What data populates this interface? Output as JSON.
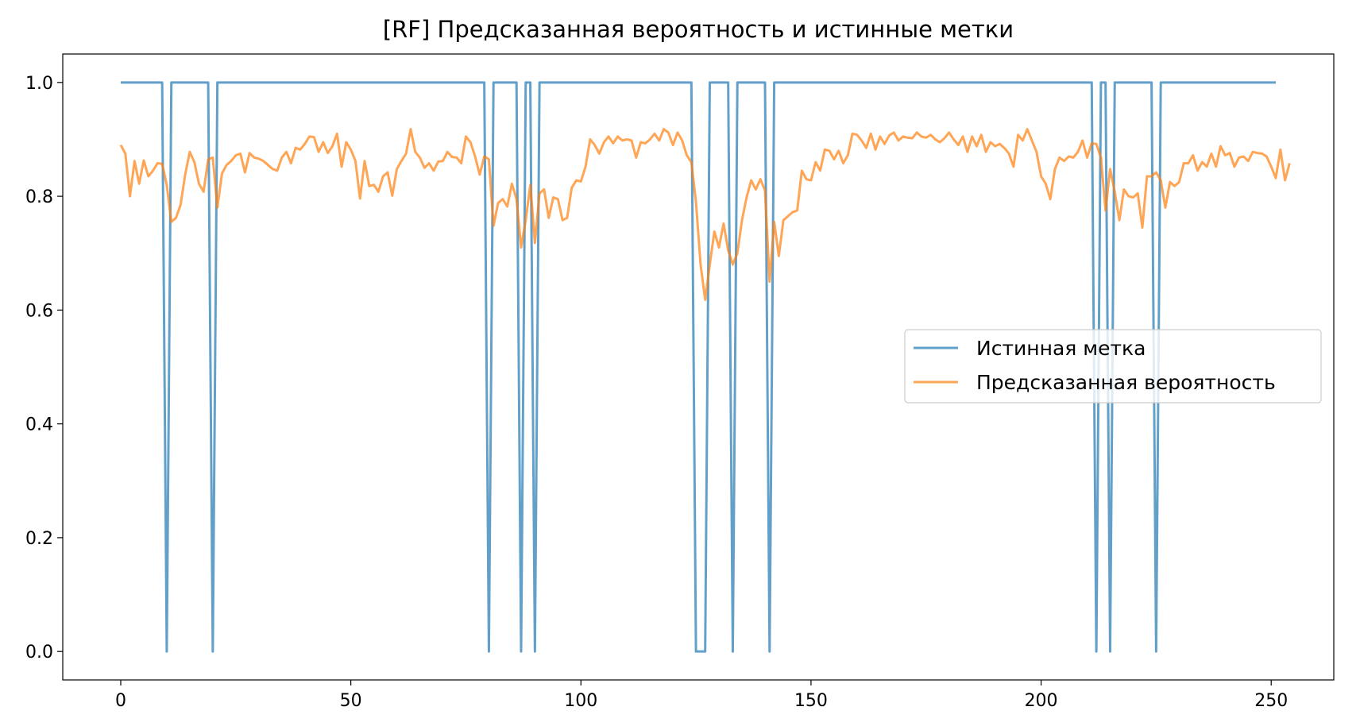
{
  "chart_data": {
    "type": "line",
    "title": "[RF] Предсказанная вероятность и истинные метки",
    "xlabel": "",
    "ylabel": "",
    "xlim": [
      -12.6,
      263.6
    ],
    "ylim": [
      -0.05,
      1.05
    ],
    "xticks": [
      0,
      50,
      100,
      150,
      200,
      250
    ],
    "yticks": [
      0.0,
      0.2,
      0.4,
      0.6,
      0.8,
      1.0
    ],
    "xtick_labels": [
      "0",
      "50",
      "100",
      "150",
      "200",
      "250"
    ],
    "ytick_labels": [
      "0.0",
      "0.2",
      "0.4",
      "0.6",
      "0.8",
      "1.0"
    ],
    "grid": false,
    "legend_position": "center-right",
    "legend": [
      "Истинная метка",
      "Предсказанная вероятность"
    ],
    "series": [
      {
        "name": "Истинная метка",
        "color": "#1f77b4",
        "y": [
          1,
          1,
          1,
          1,
          1,
          1,
          1,
          1,
          1,
          1,
          0,
          1,
          1,
          1,
          1,
          1,
          1,
          1,
          1,
          1,
          0,
          1,
          1,
          1,
          1,
          1,
          1,
          1,
          1,
          1,
          1,
          1,
          1,
          1,
          1,
          1,
          1,
          1,
          1,
          1,
          1,
          1,
          1,
          1,
          1,
          1,
          1,
          1,
          1,
          1,
          1,
          1,
          1,
          1,
          1,
          1,
          1,
          1,
          1,
          1,
          1,
          1,
          1,
          1,
          1,
          1,
          1,
          1,
          1,
          1,
          1,
          1,
          1,
          1,
          1,
          1,
          1,
          1,
          1,
          1,
          0,
          1,
          1,
          1,
          1,
          1,
          1,
          0,
          1,
          1,
          0,
          1,
          1,
          1,
          1,
          1,
          1,
          1,
          1,
          1,
          1,
          1,
          1,
          1,
          1,
          1,
          1,
          1,
          1,
          1,
          1,
          1,
          1,
          1,
          1,
          1,
          1,
          1,
          1,
          1,
          1,
          1,
          1,
          1,
          1,
          0,
          0,
          0,
          1,
          1,
          1,
          1,
          1,
          0,
          1,
          1,
          1,
          1,
          1,
          1,
          1,
          0,
          1,
          1,
          1,
          1,
          1,
          1,
          1,
          1,
          1,
          1,
          1,
          1,
          1,
          1,
          1,
          1,
          1,
          1,
          1,
          1,
          1,
          1,
          1,
          1,
          1,
          1,
          1,
          1,
          1,
          1,
          1,
          1,
          1,
          1,
          1,
          1,
          1,
          1,
          1,
          1,
          1,
          1,
          1,
          1,
          1,
          1,
          1,
          1,
          1,
          1,
          1,
          1,
          1,
          1,
          1,
          1,
          1,
          1,
          1,
          1,
          1,
          1,
          1,
          1,
          1,
          1,
          1,
          1,
          1,
          1,
          0,
          1,
          1,
          0,
          1,
          1,
          1,
          1,
          1,
          1,
          1,
          1,
          1,
          0,
          1,
          1,
          1,
          1,
          1,
          1,
          1,
          1,
          1,
          1,
          1,
          1,
          1,
          1,
          1,
          1,
          1,
          1,
          1,
          1,
          1,
          1,
          1,
          1,
          1,
          1
        ]
      },
      {
        "name": "Предсказанная вероятность",
        "color": "#ff7f0e",
        "y": [
          0.89,
          0.875,
          0.8,
          0.862,
          0.822,
          0.863,
          0.835,
          0.845,
          0.858,
          0.857,
          0.82,
          0.755,
          0.762,
          0.785,
          0.838,
          0.878,
          0.86,
          0.822,
          0.808,
          0.865,
          0.868,
          0.78,
          0.84,
          0.855,
          0.862,
          0.872,
          0.875,
          0.842,
          0.876,
          0.868,
          0.866,
          0.862,
          0.855,
          0.848,
          0.845,
          0.868,
          0.878,
          0.858,
          0.885,
          0.882,
          0.892,
          0.905,
          0.904,
          0.878,
          0.895,
          0.876,
          0.888,
          0.91,
          0.852,
          0.895,
          0.882,
          0.862,
          0.796,
          0.862,
          0.818,
          0.82,
          0.808,
          0.835,
          0.842,
          0.801,
          0.848,
          0.862,
          0.875,
          0.918,
          0.878,
          0.868,
          0.85,
          0.858,
          0.845,
          0.861,
          0.862,
          0.878,
          0.869,
          0.868,
          0.858,
          0.905,
          0.895,
          0.87,
          0.838,
          0.87,
          0.865,
          0.748,
          0.788,
          0.795,
          0.782,
          0.822,
          0.795,
          0.71,
          0.758,
          0.82,
          0.718,
          0.805,
          0.812,
          0.762,
          0.798,
          0.795,
          0.758,
          0.762,
          0.815,
          0.828,
          0.826,
          0.852,
          0.9,
          0.89,
          0.875,
          0.895,
          0.905,
          0.893,
          0.905,
          0.898,
          0.9,
          0.898,
          0.868,
          0.895,
          0.893,
          0.9,
          0.91,
          0.898,
          0.918,
          0.912,
          0.89,
          0.912,
          0.898,
          0.872,
          0.86,
          0.79,
          0.68,
          0.618,
          0.68,
          0.738,
          0.71,
          0.752,
          0.705,
          0.68,
          0.7,
          0.758,
          0.798,
          0.828,
          0.812,
          0.83,
          0.81,
          0.65,
          0.755,
          0.695,
          0.758,
          0.765,
          0.772,
          0.775,
          0.845,
          0.83,
          0.828,
          0.86,
          0.845,
          0.882,
          0.88,
          0.865,
          0.88,
          0.858,
          0.872,
          0.91,
          0.908,
          0.898,
          0.885,
          0.91,
          0.882,
          0.905,
          0.892,
          0.907,
          0.912,
          0.898,
          0.905,
          0.903,
          0.902,
          0.912,
          0.905,
          0.903,
          0.908,
          0.9,
          0.895,
          0.902,
          0.912,
          0.9,
          0.89,
          0.905,
          0.878,
          0.905,
          0.888,
          0.908,
          0.878,
          0.895,
          0.888,
          0.892,
          0.885,
          0.875,
          0.852,
          0.908,
          0.898,
          0.918,
          0.898,
          0.878,
          0.835,
          0.822,
          0.795,
          0.848,
          0.868,
          0.862,
          0.87,
          0.868,
          0.878,
          0.898,
          0.868,
          0.893,
          0.892,
          0.868,
          0.775,
          0.848,
          0.808,
          0.758,
          0.812,
          0.8,
          0.798,
          0.805,
          0.745,
          0.835,
          0.835,
          0.842,
          0.828,
          0.78,
          0.825,
          0.818,
          0.825,
          0.858,
          0.858,
          0.872,
          0.845,
          0.86,
          0.852,
          0.875,
          0.852,
          0.888,
          0.872,
          0.876,
          0.852,
          0.868,
          0.87,
          0.862,
          0.878,
          0.876,
          0.875,
          0.87,
          0.852,
          0.832,
          0.882,
          0.828,
          0.858
        ]
      }
    ]
  }
}
